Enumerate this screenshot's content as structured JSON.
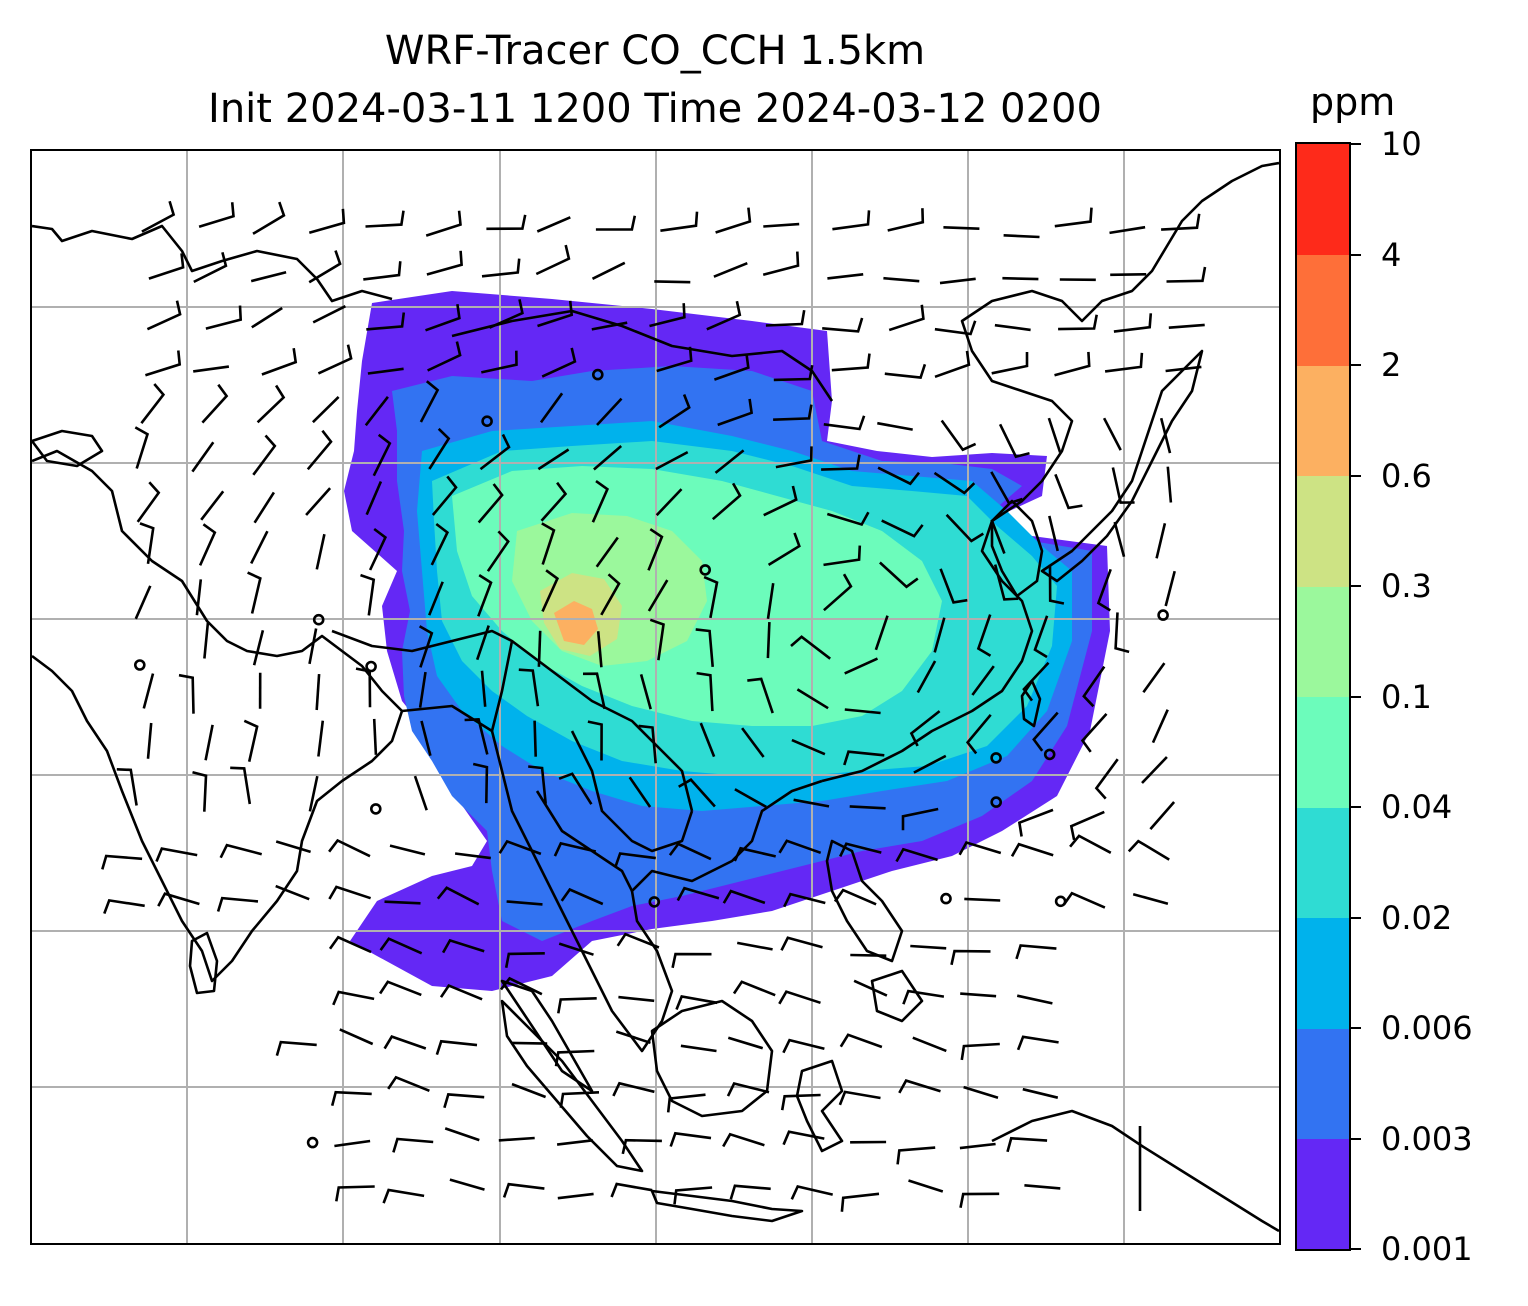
{
  "title_line1": "WRF-Tracer CO_CCH 1.5km",
  "title_line2": "Init 2024-03-11 1200 Time 2024-03-12 0200",
  "colorbar": {
    "unit": "ppm",
    "tick_labels": [
      "0.001",
      "0.003",
      "0.006",
      "0.02",
      "0.04",
      "0.1",
      "0.3",
      "0.6",
      "2",
      "4",
      "10"
    ],
    "colors": [
      "#6428f5",
      "#3273f2",
      "#00b2ec",
      "#2fdcd3",
      "#6cfcbb",
      "#9bf89c",
      "#cde384",
      "#fcb061",
      "#fe6f39",
      "#fe2a1a"
    ]
  },
  "map": {
    "gridlines": true,
    "coastline_color": "#000000",
    "grid_color": "#b0b0b0",
    "wind_barb_color": "#000000"
  }
}
